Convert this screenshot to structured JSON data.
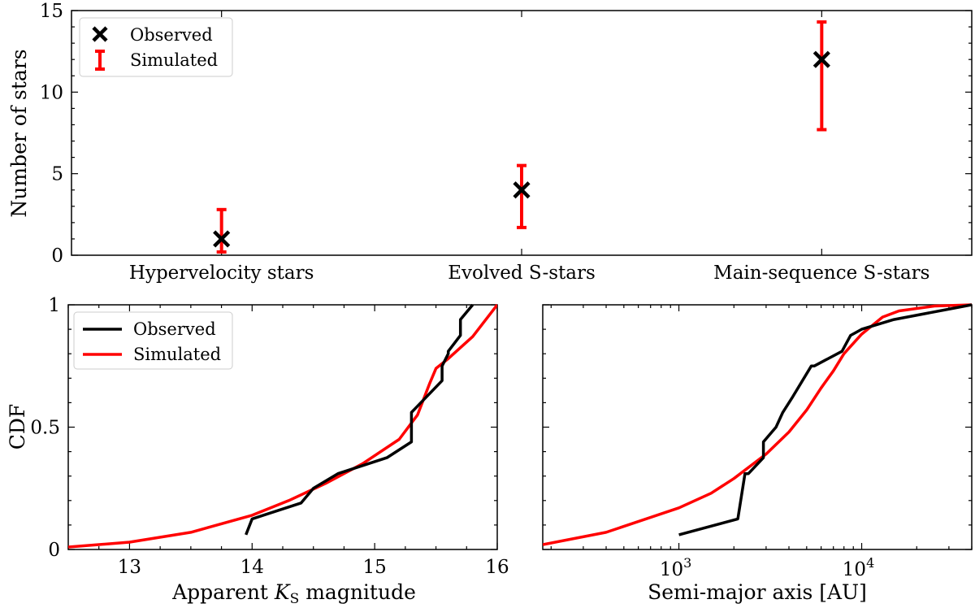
{
  "chart_data": [
    {
      "type": "scatter",
      "panel": "top",
      "categories": [
        "Hypervelocity stars",
        "Evolved S-stars",
        "Main-sequence S-stars"
      ],
      "ylabel": "Number of stars",
      "xlabel": "",
      "ylim": [
        0,
        15
      ],
      "yticks": [
        "0",
        "5",
        "10",
        "15"
      ],
      "series": [
        {
          "name": "Observed",
          "marker": "x",
          "color": "#000000",
          "values": [
            1,
            4,
            12
          ]
        },
        {
          "name": "Simulated",
          "marker": "errorbar",
          "color": "#ff0000",
          "lower": [
            0.2,
            1.7,
            7.7
          ],
          "upper": [
            2.8,
            5.5,
            14.3
          ]
        }
      ],
      "legend": [
        "Observed",
        "Simulated"
      ],
      "legend_position": "top-left"
    },
    {
      "type": "line",
      "panel": "bottom-left",
      "xlabel_prefix": "Apparent ",
      "xlabel_symbol": "K",
      "xlabel_sub": "S",
      "xlabel_suffix": " magnitude",
      "ylabel": "CDF",
      "xlim": [
        12.5,
        16
      ],
      "ylim": [
        0,
        1
      ],
      "xticks": [
        "13",
        "14",
        "15",
        "16"
      ],
      "yticks": [
        "0",
        "0.5",
        "1"
      ],
      "series": [
        {
          "name": "Observed",
          "color": "#000000",
          "x": [
            13.95,
            14.0,
            14.4,
            14.5,
            14.7,
            15.1,
            15.3,
            15.3,
            15.55,
            15.55,
            15.6,
            15.6,
            15.7,
            15.7,
            15.8
          ],
          "y": [
            0.06,
            0.125,
            0.19,
            0.25,
            0.31,
            0.375,
            0.44,
            0.56,
            0.69,
            0.75,
            0.8,
            0.81,
            0.875,
            0.94,
            1.0
          ]
        },
        {
          "name": "Simulated",
          "color": "#ff0000",
          "x": [
            12.5,
            13.0,
            13.5,
            14.0,
            14.3,
            14.6,
            14.9,
            15.2,
            15.35,
            15.45,
            15.5,
            15.6,
            15.8,
            16.0
          ],
          "y": [
            0.01,
            0.03,
            0.07,
            0.14,
            0.2,
            0.27,
            0.35,
            0.45,
            0.55,
            0.68,
            0.74,
            0.78,
            0.87,
            1.0
          ]
        }
      ],
      "legend": [
        "Observed",
        "Simulated"
      ],
      "legend_position": "top-left"
    },
    {
      "type": "line",
      "panel": "bottom-right",
      "xlabel": "Semi-major axis [AU]",
      "xscale": "log",
      "xlim": [
        180,
        40000
      ],
      "ylim": [
        0,
        1
      ],
      "xticks": [
        {
          "value": 1000,
          "base": "10",
          "exp": "3"
        },
        {
          "value": 10000,
          "base": "10",
          "exp": "4"
        }
      ],
      "series": [
        {
          "name": "Observed",
          "color": "#000000",
          "x": [
            1000,
            2100,
            2300,
            2400,
            2900,
            2900,
            3400,
            3700,
            4200,
            5300,
            5500,
            7800,
            8700,
            10000,
            15000,
            40000
          ],
          "y": [
            0.06,
            0.125,
            0.31,
            0.31,
            0.375,
            0.44,
            0.5,
            0.56,
            0.625,
            0.75,
            0.75,
            0.81,
            0.875,
            0.9,
            0.94,
            1.0
          ]
        },
        {
          "name": "Simulated",
          "color": "#ff0000",
          "x": [
            180,
            400,
            1000,
            1500,
            2000,
            3000,
            4000,
            5000,
            6000,
            7000,
            8000,
            10000,
            13000,
            16000,
            25000,
            40000
          ],
          "y": [
            0.02,
            0.07,
            0.17,
            0.23,
            0.29,
            0.39,
            0.48,
            0.57,
            0.66,
            0.73,
            0.8,
            0.88,
            0.95,
            0.975,
            0.995,
            1.0
          ]
        }
      ]
    }
  ]
}
